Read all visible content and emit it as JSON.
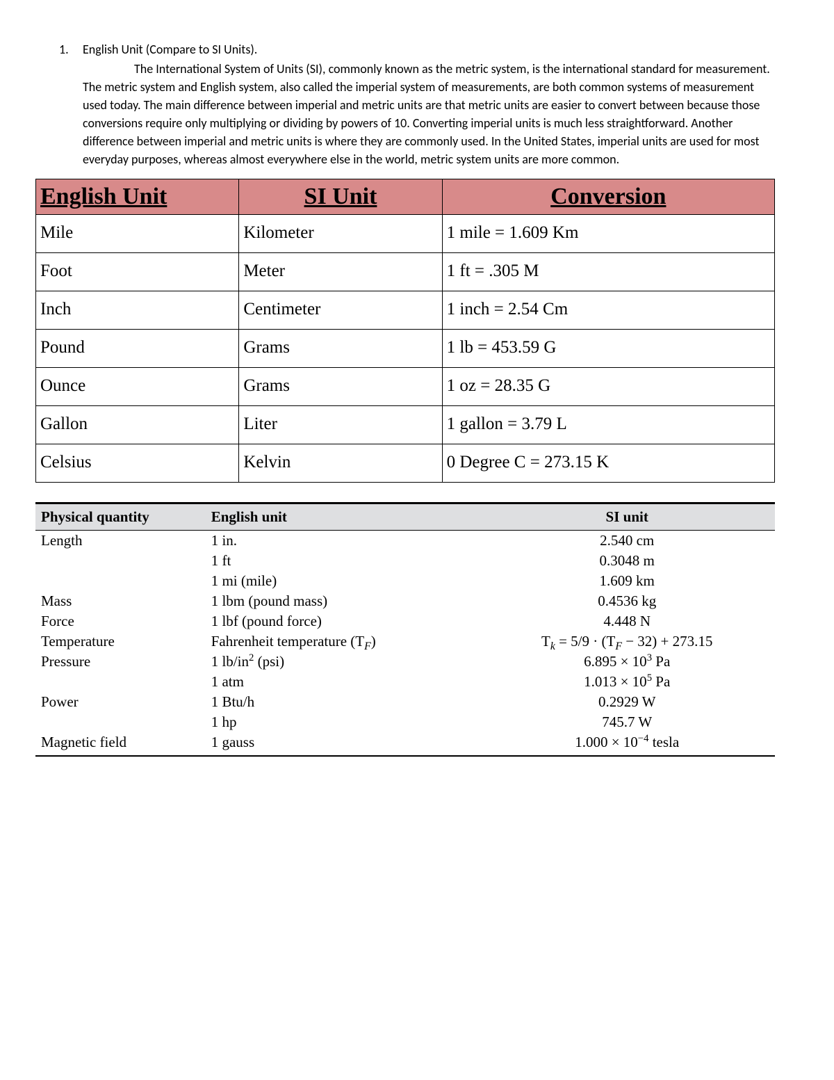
{
  "heading": {
    "num": "1.",
    "title_bold_lead": "English Unit (C",
    "title_rest": "ompare to SI Units)."
  },
  "paragraph": "The International System of Units (SI), commonly known as the metric system, is the international standard for measurement. The metric system and English system, also called the imperial system of measurements, are both common systems of measurement used today. The main difference between imperial and metric units are that metric units are easier to convert between because those conversions require only multiplying or dividing by powers of 10. Converting imperial units is much less straightforward. Another difference between imperial and metric units is where they are commonly used. In the United States, imperial units are used for most everyday purposes, whereas almost everywhere else in the world, metric system units are more common.",
  "table1": {
    "header_bg": "#d88a8a",
    "columns": [
      "English Unit",
      "SI Unit",
      "Conversion"
    ],
    "rows": [
      [
        "Mile",
        "Kilometer",
        "1 mile = 1.609 Km"
      ],
      [
        "Foot",
        "Meter",
        "1 ft = .305 M"
      ],
      [
        "Inch",
        "Centimeter",
        "1 inch = 2.54 Cm"
      ],
      [
        "Pound",
        "Grams",
        "1 lb = 453.59 G"
      ],
      [
        "Ounce",
        "Grams",
        "1 oz = 28.35 G"
      ],
      [
        "Gallon",
        "Liter",
        "1 gallon = 3.79 L"
      ],
      [
        "Celsius",
        "Kelvin",
        "0 Degree C = 273.15 K"
      ]
    ]
  },
  "table2": {
    "header_bg": "#dedfe1",
    "columns": [
      "Physical quantity",
      "English unit",
      "SI unit"
    ],
    "rows": [
      {
        "pq": "Length",
        "eu": "1 in.",
        "su": "2.540 cm"
      },
      {
        "pq": "",
        "eu": "1 ft",
        "su": "0.3048 m"
      },
      {
        "pq": "",
        "eu": "1 mi (mile)",
        "su": "1.609 km"
      },
      {
        "pq": "Mass",
        "eu": "1 lbm (pound mass)",
        "su": "0.4536 kg"
      },
      {
        "pq": "Force",
        "eu": "1 lbf (pound force)",
        "su": "4.448 N"
      },
      {
        "pq": "Temperature",
        "eu_html": "Fahrenheit temperature (T<sub><span class=\"subit\">F</span></sub>)",
        "su_html": "T<sub><span class=\"subit\">k</span></sub> = 5/9 · (T<sub><span class=\"subit\">F</span></sub> − 32) + 273.15"
      },
      {
        "pq": "Pressure",
        "eu_html": "1 lb/in<sup>2</sup> (psi)",
        "su_html": "6.895 × 10<sup>3</sup> Pa"
      },
      {
        "pq": "",
        "eu": "1 atm",
        "su_html": "1.013 × 10<sup>5</sup> Pa"
      },
      {
        "pq": "Power",
        "eu": "1 Btu/h",
        "su": "0.2929 W"
      },
      {
        "pq": "",
        "eu": "1 hp",
        "su": "745.7 W"
      },
      {
        "pq": "Magnetic field",
        "eu": "1 gauss",
        "su_html": "1.000 × 10<sup>−4</sup> tesla"
      }
    ]
  }
}
